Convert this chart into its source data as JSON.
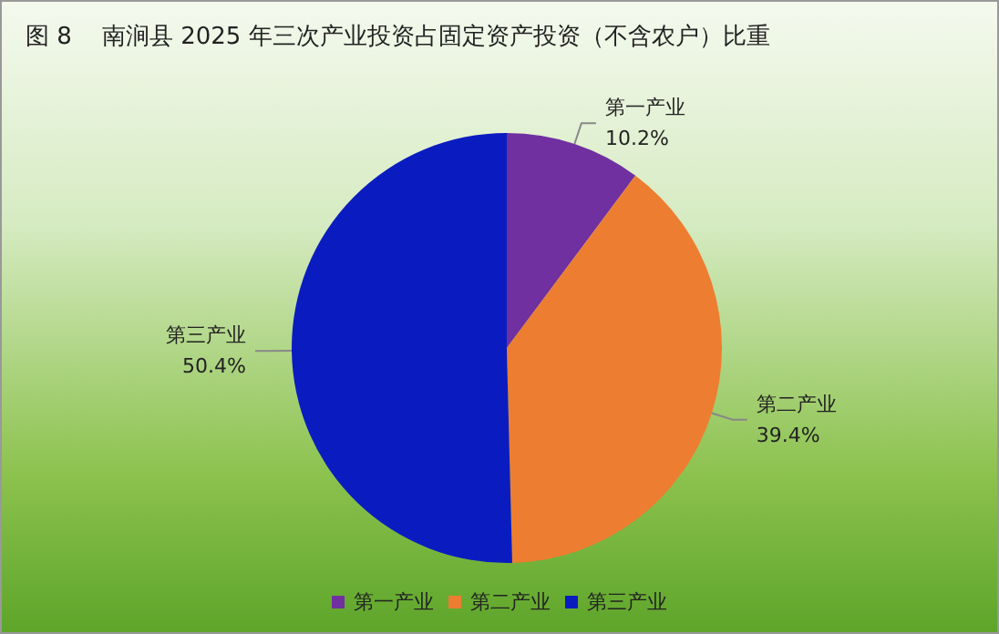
{
  "chart_data": {
    "type": "pie",
    "title": "图 8    南涧县 2025 年三次产业投资占固定资产投资（不含农户）比重",
    "categories": [
      "第一产业",
      "第二产业",
      "第三产业"
    ],
    "values": [
      10.2,
      39.4,
      50.4
    ],
    "value_labels": [
      "10.2%",
      "39.4%",
      "50.4%"
    ],
    "colors": [
      "#7030a0",
      "#ed7d31",
      "#0a1cc0"
    ],
    "legend": "bottom"
  }
}
